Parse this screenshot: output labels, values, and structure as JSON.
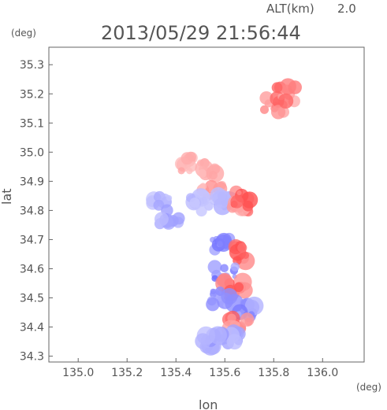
{
  "header": {
    "altitude_label": "ALT(km)",
    "altitude_value": "2.0",
    "timestamp": "2013/05/29 21:56:44"
  },
  "chart_data": {
    "type": "heatmap",
    "xlabel": "lon",
    "ylabel": "lat",
    "xunit": "(deg)",
    "yunit": "(deg)",
    "xlim": [
      134.88,
      136.17
    ],
    "ylim": [
      34.28,
      35.36
    ],
    "xticks": [
      "135.0",
      "135.2",
      "135.4",
      "135.6",
      "135.8",
      "136.0"
    ],
    "yticks": [
      "34.3",
      "34.4",
      "34.5",
      "34.6",
      "34.7",
      "34.8",
      "34.9",
      "35.0",
      "35.1",
      "35.2",
      "35.3"
    ],
    "grid": false,
    "colors": {
      "positive": "#ff5050",
      "positive_light": "#ffd6d6",
      "negative": "#6060ff",
      "negative_light": "#d8d8ff"
    },
    "blobs": [
      {
        "lon": 135.46,
        "lat": 34.96,
        "polarity": "positive",
        "intensity": 0.25
      },
      {
        "lon": 135.53,
        "lat": 34.94,
        "polarity": "positive",
        "intensity": 0.3
      },
      {
        "lon": 135.55,
        "lat": 34.86,
        "polarity": "positive",
        "intensity": 0.35
      },
      {
        "lon": 135.34,
        "lat": 34.82,
        "polarity": "negative",
        "intensity": 0.3
      },
      {
        "lon": 135.37,
        "lat": 34.78,
        "polarity": "negative",
        "intensity": 0.35
      },
      {
        "lon": 135.5,
        "lat": 34.82,
        "polarity": "negative",
        "intensity": 0.25
      },
      {
        "lon": 135.58,
        "lat": 34.83,
        "polarity": "negative",
        "intensity": 0.3
      },
      {
        "lon": 135.66,
        "lat": 34.81,
        "polarity": "positive",
        "intensity": 0.55
      },
      {
        "lon": 135.68,
        "lat": 34.84,
        "polarity": "positive",
        "intensity": 0.7
      },
      {
        "lon": 135.58,
        "lat": 34.68,
        "polarity": "negative",
        "intensity": 0.6
      },
      {
        "lon": 135.66,
        "lat": 34.65,
        "polarity": "positive",
        "intensity": 0.8
      },
      {
        "lon": 135.6,
        "lat": 34.58,
        "polarity": "negative",
        "intensity": 0.7
      },
      {
        "lon": 135.64,
        "lat": 34.54,
        "polarity": "positive",
        "intensity": 0.75
      },
      {
        "lon": 135.58,
        "lat": 34.5,
        "polarity": "negative",
        "intensity": 0.6
      },
      {
        "lon": 135.68,
        "lat": 34.46,
        "polarity": "negative",
        "intensity": 0.55
      },
      {
        "lon": 135.66,
        "lat": 34.41,
        "polarity": "positive",
        "intensity": 0.7
      },
      {
        "lon": 135.62,
        "lat": 34.36,
        "polarity": "negative",
        "intensity": 0.35
      },
      {
        "lon": 135.55,
        "lat": 34.35,
        "polarity": "negative",
        "intensity": 0.4
      },
      {
        "lon": 135.8,
        "lat": 35.16,
        "polarity": "positive",
        "intensity": 0.6
      },
      {
        "lon": 135.85,
        "lat": 35.2,
        "polarity": "positive",
        "intensity": 0.6
      }
    ]
  }
}
